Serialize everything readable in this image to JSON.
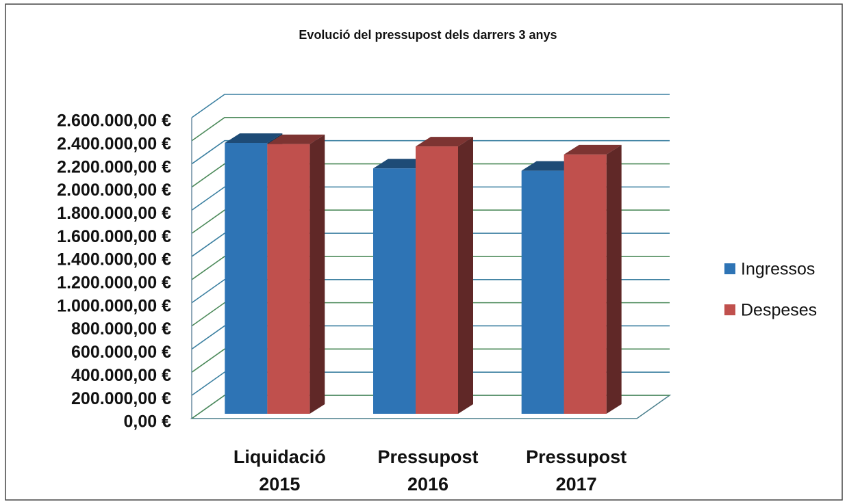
{
  "chart_data": {
    "type": "bar3d",
    "title": "Evolució del pressupost dels darrers 3 anys",
    "categories": [
      "Liquidació 2015",
      "Pressupost 2016",
      "Pressupost 2017"
    ],
    "series": [
      {
        "name": "Ingressos",
        "color": "#2e74b5",
        "values": [
          2340000,
          2120000,
          2100000
        ]
      },
      {
        "name": "Despeses",
        "color": "#c0504d",
        "values": [
          2330000,
          2310000,
          2240000
        ]
      }
    ],
    "ylim": [
      0,
      2600000
    ],
    "yticks": [
      {
        "value": 0,
        "label": "0,00 €"
      },
      {
        "value": 200000,
        "label": "200.000,00 €"
      },
      {
        "value": 400000,
        "label": "400.000,00 €"
      },
      {
        "value": 600000,
        "label": "600.000,00 €"
      },
      {
        "value": 800000,
        "label": "800.000,00 €"
      },
      {
        "value": 1000000,
        "label": "1.000.000,00 €"
      },
      {
        "value": 1200000,
        "label": "1.200.000,00 €"
      },
      {
        "value": 1400000,
        "label": "1.400.000,00 €"
      },
      {
        "value": 1600000,
        "label": "1.600.000,00 €"
      },
      {
        "value": 1800000,
        "label": "1.800.000,00 €"
      },
      {
        "value": 2000000,
        "label": "2.000.000,00 €"
      },
      {
        "value": 2200000,
        "label": "2.200.000,00 €"
      },
      {
        "value": 2400000,
        "label": "2.400.000,00 €"
      },
      {
        "value": 2600000,
        "label": "2.600.000,00 €"
      }
    ],
    "grid": true,
    "legend": "right"
  }
}
